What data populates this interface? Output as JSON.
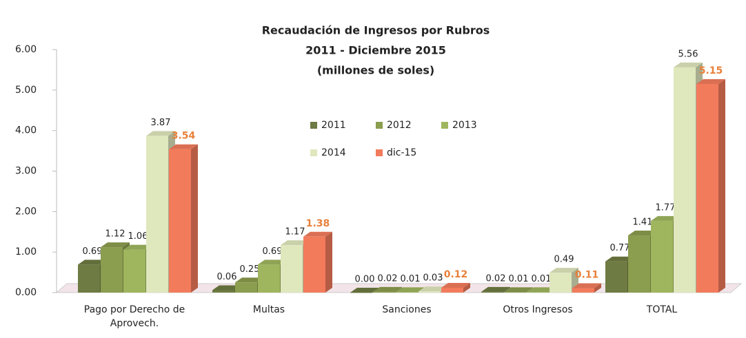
{
  "chart_data": {
    "type": "bar3d",
    "title": "Recaudación de Ingresos por Rubros",
    "subtitle": [
      "2011 - Diciembre 2015",
      "(millones de soles)"
    ],
    "categories": [
      "Pago por Derecho de Aprovech.",
      "Multas",
      "Sanciones",
      "Otros Ingresos",
      "TOTAL"
    ],
    "series": [
      {
        "name": "2011",
        "color": "#6e7b42",
        "label_color": "#222222",
        "values": [
          0.69,
          0.06,
          0.0,
          0.02,
          0.77
        ],
        "value_labels": [
          "0.69",
          "0.06",
          "0.00",
          "0.02",
          "0.77"
        ]
      },
      {
        "name": "2012",
        "color": "#8b9d4e",
        "label_color": "#222222",
        "values": [
          1.12,
          0.25,
          0.02,
          0.01,
          1.41
        ],
        "value_labels": [
          "1.12",
          "0.25",
          "0.02",
          "0.01",
          "1.41"
        ]
      },
      {
        "name": "2013",
        "color": "#9fb65e",
        "label_color": "#222222",
        "values": [
          1.06,
          0.69,
          0.01,
          0.01,
          1.77
        ],
        "value_labels": [
          "1.06",
          "0.69",
          "0.01",
          "0.01",
          "1.77"
        ]
      },
      {
        "name": "2014",
        "color": "#dfe7bd",
        "label_color": "#222222",
        "values": [
          3.87,
          1.17,
          0.03,
          0.49,
          5.56
        ],
        "value_labels": [
          "3.87",
          "1.17",
          "0.03",
          "0.49",
          "5.56"
        ]
      },
      {
        "name": "dic-15",
        "color": "#f27b5c",
        "label_color": "#e8803a",
        "values": [
          3.54,
          1.38,
          0.12,
          0.11,
          5.15
        ],
        "value_labels": [
          "3.54",
          "1.38",
          "0.12",
          "0.11",
          "5.15"
        ]
      }
    ],
    "ylim": [
      0,
      6
    ],
    "yticks": [
      {
        "value": 0,
        "label": "0.00"
      },
      {
        "value": 1,
        "label": "1.00"
      },
      {
        "value": 2,
        "label": "2.00"
      },
      {
        "value": 3,
        "label": "3.00"
      },
      {
        "value": 4,
        "label": "4.00"
      },
      {
        "value": 5,
        "label": "5.00"
      },
      {
        "value": 6,
        "label": "6.00"
      }
    ],
    "grid": false
  }
}
